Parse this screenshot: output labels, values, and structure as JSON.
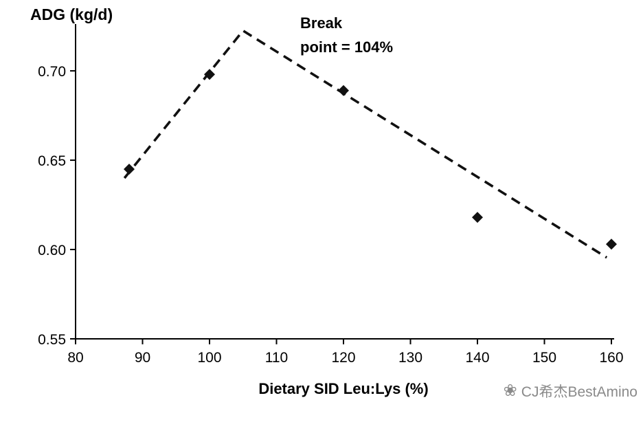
{
  "chart_data": {
    "type": "scatter",
    "title": "",
    "y_axis_label": "ADG (kg/d)",
    "x_axis_label": "Dietary SID Leu:Lys (%)",
    "annotation": {
      "line1": "Break",
      "line2": "point = 104%"
    },
    "x_ticks": [
      "80",
      "90",
      "100",
      "110",
      "120",
      "130",
      "140",
      "150",
      "160"
    ],
    "y_ticks": [
      "0.55",
      "0.60",
      "0.65",
      "0.70"
    ],
    "xlim": [
      80,
      160
    ],
    "ylim": [
      0.55,
      0.7262
    ],
    "grid": "off",
    "legend": "none",
    "points": [
      {
        "x": 88,
        "y": 0.645
      },
      {
        "x": 100,
        "y": 0.698
      },
      {
        "x": 120,
        "y": 0.689
      },
      {
        "x": 140,
        "y": 0.618
      },
      {
        "x": 160,
        "y": 0.603
      }
    ],
    "break_line": [
      {
        "x": 87.3,
        "y": 0.64
      },
      {
        "x": 105,
        "y": 0.7225
      },
      {
        "x": 159.3,
        "y": 0.5955
      }
    ],
    "break_point_x_pct": 104,
    "marker": "diamond",
    "line_style": "dashed",
    "axis_color": "#000000",
    "series_color": "#111111"
  },
  "watermark": {
    "logo": "cj-flower-logo",
    "text": "CJ希杰BestAmino",
    "color": "#8a8a8a"
  }
}
